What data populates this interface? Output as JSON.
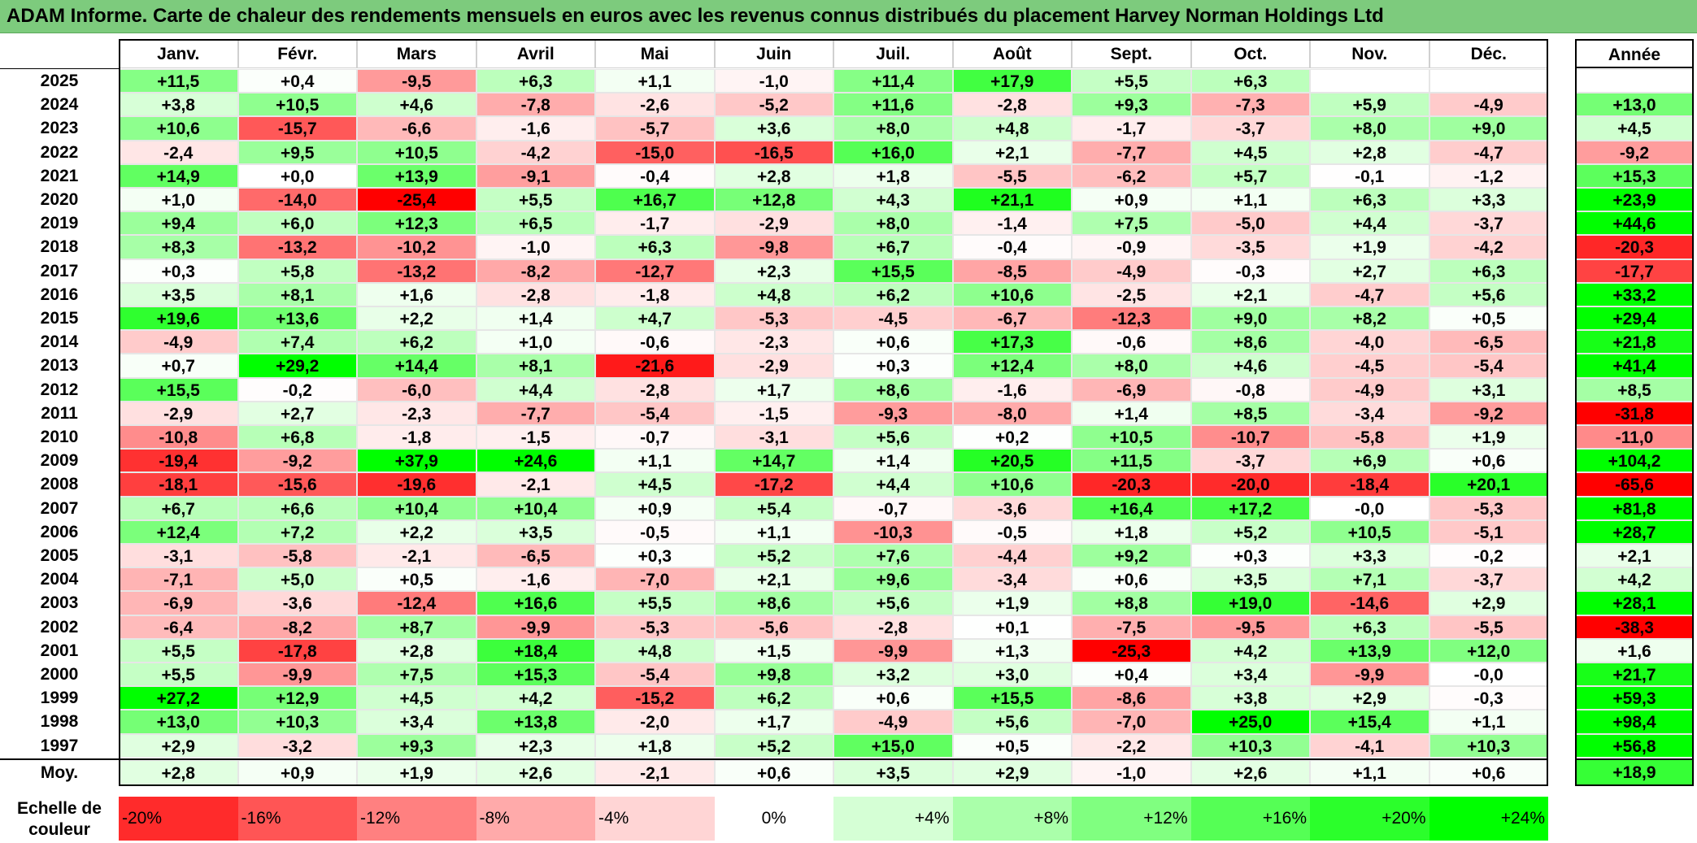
{
  "title": "ADAM Informe. Carte de chaleur des rendements mensuels en euros avec les revenus connus distribués du placement Harvey Norman Holdings Ltd",
  "chart_data": {
    "type": "heatmap",
    "months": [
      "Janv.",
      "Févr.",
      "Mars",
      "Avril",
      "Mai",
      "Juin",
      "Juil.",
      "Août",
      "Sept.",
      "Oct.",
      "Nov.",
      "Déc."
    ],
    "year_header": "Année",
    "avg_label": "Moy.",
    "rows": [
      {
        "year": "2025",
        "values": [
          "+11,5",
          "+0,4",
          "-9,5",
          "+6,3",
          "+1,1",
          "-1,0",
          "+11,4",
          "+17,9",
          "+5,5",
          "+6,3",
          "",
          ""
        ],
        "annual": ""
      },
      {
        "year": "2024",
        "values": [
          "+3,8",
          "+10,5",
          "+4,6",
          "-7,8",
          "-2,6",
          "-5,2",
          "+11,6",
          "-2,8",
          "+9,3",
          "-7,3",
          "+5,9",
          "-4,9"
        ],
        "annual": "+13,0"
      },
      {
        "year": "2023",
        "values": [
          "+10,6",
          "-15,7",
          "-6,6",
          "-1,6",
          "-5,7",
          "+3,6",
          "+8,0",
          "+4,8",
          "-1,7",
          "-3,7",
          "+8,0",
          "+9,0"
        ],
        "annual": "+4,5"
      },
      {
        "year": "2022",
        "values": [
          "-2,4",
          "+9,5",
          "+10,5",
          "-4,2",
          "-15,0",
          "-16,5",
          "+16,0",
          "+2,1",
          "-7,7",
          "+4,5",
          "+2,8",
          "-4,7"
        ],
        "annual": "-9,2"
      },
      {
        "year": "2021",
        "values": [
          "+14,9",
          "+0,0",
          "+13,9",
          "-9,1",
          "-0,4",
          "+2,8",
          "+1,8",
          "-5,5",
          "-6,2",
          "+5,7",
          "-0,1",
          "-1,2"
        ],
        "annual": "+15,3"
      },
      {
        "year": "2020",
        "values": [
          "+1,0",
          "-14,0",
          "-25,4",
          "+5,5",
          "+16,7",
          "+12,8",
          "+4,3",
          "+21,1",
          "+0,9",
          "+1,1",
          "+6,3",
          "+3,3"
        ],
        "annual": "+23,9"
      },
      {
        "year": "2019",
        "values": [
          "+9,4",
          "+6,0",
          "+12,3",
          "+6,5",
          "-1,7",
          "-2,9",
          "+8,0",
          "-1,4",
          "+7,5",
          "-5,0",
          "+4,4",
          "-3,7"
        ],
        "annual": "+44,6"
      },
      {
        "year": "2018",
        "values": [
          "+8,3",
          "-13,2",
          "-10,2",
          "-1,0",
          "+6,3",
          "-9,8",
          "+6,7",
          "-0,4",
          "-0,9",
          "-3,5",
          "+1,9",
          "-4,2"
        ],
        "annual": "-20,3"
      },
      {
        "year": "2017",
        "values": [
          "+0,3",
          "+5,8",
          "-13,2",
          "-8,2",
          "-12,7",
          "+2,3",
          "+15,5",
          "-8,5",
          "-4,9",
          "-0,3",
          "+2,7",
          "+6,3"
        ],
        "annual": "-17,7"
      },
      {
        "year": "2016",
        "values": [
          "+3,5",
          "+8,1",
          "+1,6",
          "-2,8",
          "-1,8",
          "+4,8",
          "+6,2",
          "+10,6",
          "-2,5",
          "+2,1",
          "-4,7",
          "+5,6"
        ],
        "annual": "+33,2"
      },
      {
        "year": "2015",
        "values": [
          "+19,6",
          "+13,6",
          "+2,2",
          "+1,4",
          "+4,7",
          "-5,3",
          "-4,5",
          "-6,7",
          "-12,3",
          "+9,0",
          "+8,2",
          "+0,5"
        ],
        "annual": "+29,4"
      },
      {
        "year": "2014",
        "values": [
          "-4,9",
          "+7,4",
          "+6,2",
          "+1,0",
          "-0,6",
          "-2,3",
          "+0,6",
          "+17,3",
          "-0,6",
          "+8,6",
          "-4,0",
          "-6,5"
        ],
        "annual": "+21,8"
      },
      {
        "year": "2013",
        "values": [
          "+0,7",
          "+29,2",
          "+14,4",
          "+8,1",
          "-21,6",
          "-2,9",
          "+0,3",
          "+12,4",
          "+8,0",
          "+4,6",
          "-4,5",
          "-5,4"
        ],
        "annual": "+41,4"
      },
      {
        "year": "2012",
        "values": [
          "+15,5",
          "-0,2",
          "-6,0",
          "+4,4",
          "-2,8",
          "+1,7",
          "+8,6",
          "-1,6",
          "-6,9",
          "-0,8",
          "-4,9",
          "+3,1"
        ],
        "annual": "+8,5"
      },
      {
        "year": "2011",
        "values": [
          "-2,9",
          "+2,7",
          "-2,3",
          "-7,7",
          "-5,4",
          "-1,5",
          "-9,3",
          "-8,0",
          "+1,4",
          "+8,5",
          "-3,4",
          "-9,2"
        ],
        "annual": "-31,8"
      },
      {
        "year": "2010",
        "values": [
          "-10,8",
          "+6,8",
          "-1,8",
          "-1,5",
          "-0,7",
          "-3,1",
          "+5,6",
          "+0,2",
          "+10,5",
          "-10,7",
          "-5,8",
          "+1,9"
        ],
        "annual": "-11,0"
      },
      {
        "year": "2009",
        "values": [
          "-19,4",
          "-9,2",
          "+37,9",
          "+24,6",
          "+1,1",
          "+14,7",
          "+1,4",
          "+20,5",
          "+11,5",
          "-3,7",
          "+6,9",
          "+0,6"
        ],
        "annual": "+104,2"
      },
      {
        "year": "2008",
        "values": [
          "-18,1",
          "-15,6",
          "-19,6",
          "-2,1",
          "+4,5",
          "-17,2",
          "+4,4",
          "+10,6",
          "-20,3",
          "-20,0",
          "-18,4",
          "+20,1"
        ],
        "annual": "-65,6"
      },
      {
        "year": "2007",
        "values": [
          "+6,7",
          "+6,6",
          "+10,4",
          "+10,4",
          "+0,9",
          "+5,4",
          "-0,7",
          "-3,6",
          "+16,4",
          "+17,2",
          "-0,0",
          "-5,3"
        ],
        "annual": "+81,8"
      },
      {
        "year": "2006",
        "values": [
          "+12,4",
          "+7,2",
          "+2,2",
          "+3,5",
          "-0,5",
          "+1,1",
          "-10,3",
          "-0,5",
          "+1,8",
          "+5,2",
          "+10,5",
          "-5,1"
        ],
        "annual": "+28,7"
      },
      {
        "year": "2005",
        "values": [
          "-3,1",
          "-5,8",
          "-2,1",
          "-6,5",
          "+0,3",
          "+5,2",
          "+7,6",
          "-4,4",
          "+9,2",
          "+0,3",
          "+3,3",
          "-0,2"
        ],
        "annual": "+2,1"
      },
      {
        "year": "2004",
        "values": [
          "-7,1",
          "+5,0",
          "+0,5",
          "-1,6",
          "-7,0",
          "+2,1",
          "+9,6",
          "-3,4",
          "+0,6",
          "+3,5",
          "+7,1",
          "-3,7"
        ],
        "annual": "+4,2"
      },
      {
        "year": "2003",
        "values": [
          "-6,9",
          "-3,6",
          "-12,4",
          "+16,6",
          "+5,5",
          "+8,6",
          "+5,6",
          "+1,9",
          "+8,8",
          "+19,0",
          "-14,6",
          "+2,9"
        ],
        "annual": "+28,1"
      },
      {
        "year": "2002",
        "values": [
          "-6,4",
          "-8,2",
          "+8,7",
          "-9,9",
          "-5,3",
          "-5,6",
          "-2,8",
          "+0,1",
          "-7,5",
          "-9,5",
          "+6,3",
          "-5,5"
        ],
        "annual": "-38,3"
      },
      {
        "year": "2001",
        "values": [
          "+5,5",
          "-17,8",
          "+2,8",
          "+18,4",
          "+4,8",
          "+1,5",
          "-9,9",
          "+1,3",
          "-25,3",
          "+4,2",
          "+13,9",
          "+12,0"
        ],
        "annual": "+1,6"
      },
      {
        "year": "2000",
        "values": [
          "+5,5",
          "-9,9",
          "+7,5",
          "+15,3",
          "-5,4",
          "+9,8",
          "+3,2",
          "+3,0",
          "+0,4",
          "+3,4",
          "-9,9",
          "-0,0"
        ],
        "annual": "+21,7"
      },
      {
        "year": "1999",
        "values": [
          "+27,2",
          "+12,9",
          "+4,5",
          "+4,2",
          "-15,2",
          "+6,2",
          "+0,6",
          "+15,5",
          "-8,6",
          "+3,8",
          "+2,9",
          "-0,3"
        ],
        "annual": "+59,3"
      },
      {
        "year": "1998",
        "values": [
          "+13,0",
          "+10,3",
          "+3,4",
          "+13,8",
          "-2,0",
          "+1,7",
          "-4,9",
          "+5,6",
          "-7,0",
          "+25,0",
          "+15,4",
          "+1,1"
        ],
        "annual": "+98,4"
      },
      {
        "year": "1997",
        "values": [
          "+2,9",
          "-3,2",
          "+9,3",
          "+2,3",
          "+1,8",
          "+5,2",
          "+15,0",
          "+0,5",
          "-2,2",
          "+10,3",
          "-4,1",
          "+10,3"
        ],
        "annual": "+56,8"
      }
    ],
    "averages": [
      "+2,8",
      "+0,9",
      "+1,9",
      "+2,6",
      "-2,1",
      "+0,6",
      "+3,5",
      "+2,9",
      "-1,0",
      "+2,6",
      "+1,1",
      "+0,6"
    ],
    "average_annual": "+18,9",
    "scale_label": "Echelle de couleur",
    "scale": [
      "-20%",
      "-16%",
      "-12%",
      "-8%",
      "-4%",
      "0%",
      "+4%",
      "+8%",
      "+12%",
      "+16%",
      "+20%",
      "+24%"
    ],
    "scale_values": [
      -20,
      -16,
      -12,
      -8,
      -4,
      0,
      4,
      8,
      12,
      16,
      20,
      24
    ]
  }
}
